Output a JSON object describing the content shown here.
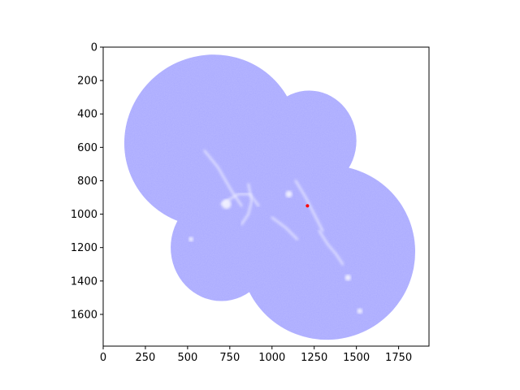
{
  "chart_data": {
    "type": "heatmap",
    "title": "",
    "xlabel": "",
    "ylabel": "",
    "xlim": [
      0,
      1930
    ],
    "ylim": [
      1790,
      0
    ],
    "x_ticks": [
      0,
      250,
      500,
      750,
      1000,
      1250,
      1500,
      1750
    ],
    "y_ticks": [
      0,
      200,
      400,
      600,
      800,
      1000,
      1200,
      1400,
      1600
    ],
    "colormap": "bwr",
    "colors": {
      "low": "#0000ff",
      "mid": "#ffffff",
      "high": "#ff0000",
      "fill": "#a9a9ff"
    },
    "grid": false,
    "footprint_lobes": [
      {
        "cx": 640,
        "cy": 560,
        "rx": 520,
        "ry": 510,
        "angle": -35
      },
      {
        "cx": 1330,
        "cy": 1230,
        "rx": 520,
        "ry": 520,
        "angle": -35
      },
      {
        "cx": 1220,
        "cy": 560,
        "rx": 280,
        "ry": 300,
        "angle": 0
      },
      {
        "cx": 700,
        "cy": 1200,
        "rx": 300,
        "ry": 320,
        "angle": 0
      }
    ],
    "features": [
      {
        "kind": "filament",
        "points": [
          [
            600,
            620
          ],
          [
            680,
            720
          ],
          [
            760,
            860
          ],
          [
            820,
            950
          ]
        ]
      },
      {
        "kind": "filament",
        "points": [
          [
            700,
            940
          ],
          [
            800,
            880
          ],
          [
            870,
            880
          ],
          [
            920,
            950
          ]
        ]
      },
      {
        "kind": "filament",
        "points": [
          [
            860,
            820
          ],
          [
            880,
            920
          ],
          [
            860,
            1000
          ],
          [
            820,
            1060
          ]
        ]
      },
      {
        "kind": "filament",
        "points": [
          [
            1140,
            800
          ],
          [
            1200,
            900
          ],
          [
            1250,
            1000
          ],
          [
            1300,
            1100
          ]
        ]
      },
      {
        "kind": "filament",
        "points": [
          [
            1280,
            1100
          ],
          [
            1330,
            1180
          ],
          [
            1380,
            1240
          ],
          [
            1420,
            1300
          ]
        ]
      },
      {
        "kind": "filament",
        "points": [
          [
            1000,
            1020
          ],
          [
            1080,
            1080
          ],
          [
            1150,
            1150
          ]
        ]
      },
      {
        "kind": "blob",
        "x": 730,
        "y": 940,
        "r": 28
      },
      {
        "kind": "blob",
        "x": 1100,
        "y": 880,
        "r": 20
      },
      {
        "kind": "blob",
        "x": 1450,
        "y": 1380,
        "r": 18
      },
      {
        "kind": "blob",
        "x": 1520,
        "y": 1580,
        "r": 16
      },
      {
        "kind": "blob",
        "x": 520,
        "y": 1150,
        "r": 14
      },
      {
        "kind": "peak",
        "x": 1210,
        "y": 950,
        "r": 10
      }
    ]
  }
}
